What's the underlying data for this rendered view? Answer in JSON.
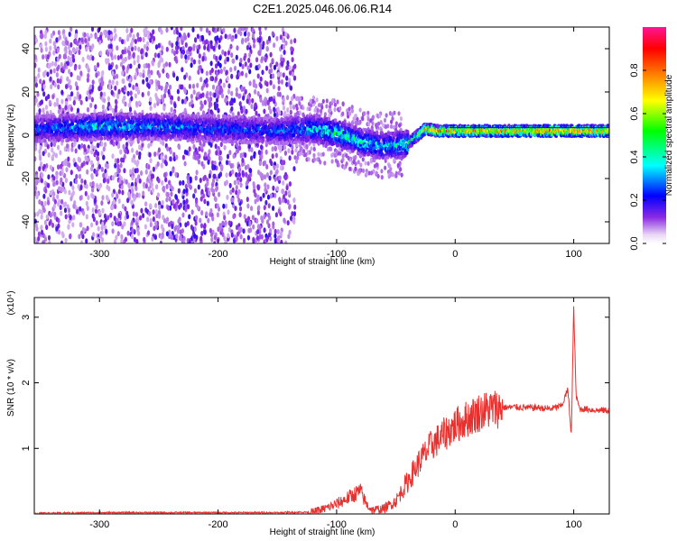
{
  "title": "C2E1.2025.046.06.06.R14",
  "chart_data": [
    {
      "type": "heatmap",
      "xlabel": "Height of straight line (km)",
      "ylabel": "Frequency (Hz)",
      "xlim": [
        -355,
        130
      ],
      "ylim": [
        -50,
        50
      ],
      "x_ticks": [
        -300,
        -200,
        -100,
        0,
        100
      ],
      "x_tick_labels": [
        "-300",
        "-200",
        "-100",
        "0",
        "100"
      ],
      "y_ticks": [
        -40,
        -20,
        0,
        20,
        40
      ],
      "y_tick_labels": [
        "-40",
        "-20",
        "0",
        "20",
        "40"
      ],
      "colorbar": {
        "label": "Normalized spectral amplitude",
        "range": [
          0,
          1
        ],
        "ticks": [
          0.0,
          0.2,
          0.4,
          0.6,
          0.8
        ],
        "tick_labels": [
          "0.0",
          "0.2",
          "0.4",
          "0.6",
          "0.8"
        ],
        "colors": [
          "#e9d8f5",
          "#8a2be2",
          "#0000ff",
          "#00ffff",
          "#00ff00",
          "#ffff00",
          "#ff8000",
          "#ff0000",
          "#ff1493"
        ]
      },
      "ridge": {
        "x": [
          -350,
          -300,
          -250,
          -200,
          -150,
          -120,
          -100,
          -80,
          -60,
          -40,
          -25,
          -15,
          0,
          50,
          100,
          130
        ],
        "frequency": [
          3,
          4,
          4,
          3,
          2,
          3,
          1,
          -3,
          -5,
          -4,
          3,
          2,
          2,
          2,
          2,
          2
        ],
        "amplitude": [
          0.35,
          0.45,
          0.4,
          0.35,
          0.35,
          0.45,
          0.55,
          0.5,
          0.45,
          0.5,
          0.85,
          0.95,
          0.9,
          0.95,
          0.95,
          0.95
        ]
      }
    },
    {
      "type": "line",
      "xlabel": "Height of straight line (km)",
      "ylabel": "SNR (10 * v/v)",
      "y_multiplier": "(x10⁴)",
      "xlim": [
        -355,
        130
      ],
      "ylim": [
        0,
        3.3
      ],
      "x_ticks": [
        -300,
        -200,
        -100,
        0,
        100
      ],
      "x_tick_labels": [
        "-300",
        "-200",
        "-100",
        "0",
        "100"
      ],
      "y_ticks": [
        1,
        2,
        3
      ],
      "y_tick_labels": [
        "1",
        "2",
        "3"
      ],
      "series": [
        {
          "color": "#e8312f",
          "x": [
            -355,
            -300,
            -250,
            -200,
            -150,
            -120,
            -110,
            -100,
            -90,
            -80,
            -75,
            -70,
            -60,
            -50,
            -40,
            -30,
            -20,
            -10,
            0,
            10,
            20,
            30,
            40,
            50,
            60,
            70,
            80,
            90,
            95,
            98,
            100,
            102,
            105,
            110,
            120,
            130
          ],
          "y": [
            0.01,
            0.02,
            0.02,
            0.02,
            0.02,
            0.03,
            0.08,
            0.15,
            0.25,
            0.35,
            0.15,
            0.06,
            0.08,
            0.2,
            0.5,
            0.8,
            1.05,
            1.2,
            1.35,
            1.45,
            1.55,
            1.6,
            1.62,
            1.63,
            1.62,
            1.62,
            1.6,
            1.65,
            1.9,
            1.2,
            3.15,
            1.8,
            1.6,
            1.6,
            1.58,
            1.58
          ]
        }
      ]
    }
  ]
}
